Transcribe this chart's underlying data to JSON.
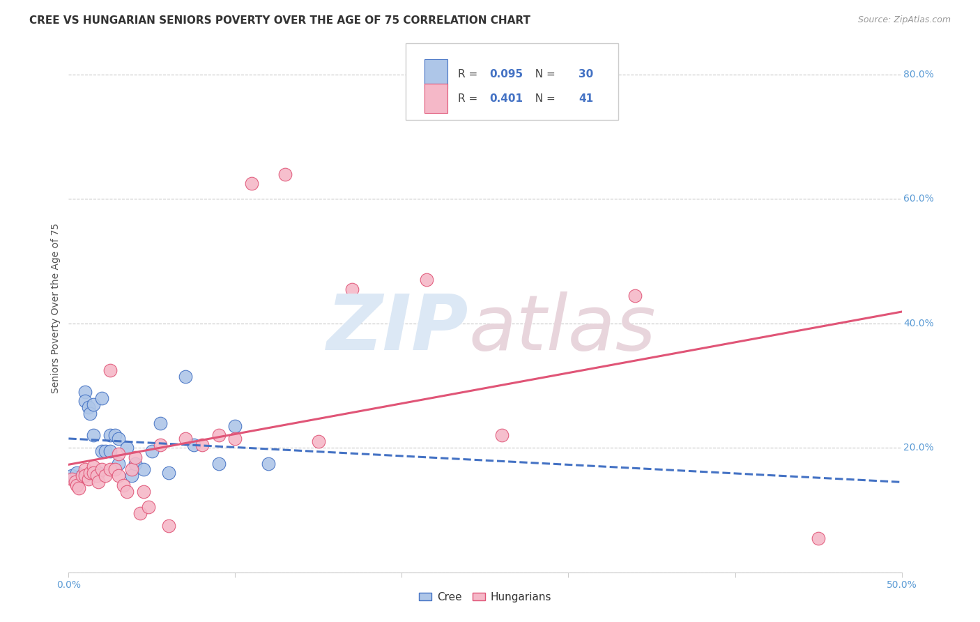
{
  "title": "CREE VS HUNGARIAN SENIORS POVERTY OVER THE AGE OF 75 CORRELATION CHART",
  "source": "Source: ZipAtlas.com",
  "ylabel": "Seniors Poverty Over the Age of 75",
  "xlim": [
    0.0,
    0.5
  ],
  "ylim": [
    0.0,
    0.85
  ],
  "cree_R": 0.095,
  "cree_N": 30,
  "hung_R": 0.401,
  "hung_N": 41,
  "cree_color": "#aec6e8",
  "hung_color": "#f5b8c8",
  "cree_line_color": "#4472c4",
  "hung_line_color": "#e05577",
  "background_color": "#ffffff",
  "grid_color": "#c8c8c8",
  "cree_x": [
    0.002,
    0.005,
    0.008,
    0.01,
    0.01,
    0.012,
    0.013,
    0.015,
    0.015,
    0.018,
    0.02,
    0.02,
    0.022,
    0.025,
    0.025,
    0.028,
    0.03,
    0.03,
    0.035,
    0.038,
    0.04,
    0.045,
    0.05,
    0.055,
    0.06,
    0.07,
    0.075,
    0.09,
    0.1,
    0.12
  ],
  "cree_y": [
    0.155,
    0.16,
    0.155,
    0.29,
    0.275,
    0.265,
    0.255,
    0.27,
    0.22,
    0.16,
    0.28,
    0.195,
    0.195,
    0.22,
    0.195,
    0.22,
    0.215,
    0.175,
    0.2,
    0.155,
    0.175,
    0.165,
    0.195,
    0.24,
    0.16,
    0.315,
    0.205,
    0.175,
    0.235,
    0.175
  ],
  "hung_x": [
    0.002,
    0.004,
    0.005,
    0.006,
    0.008,
    0.01,
    0.01,
    0.012,
    0.013,
    0.015,
    0.015,
    0.017,
    0.018,
    0.02,
    0.022,
    0.025,
    0.025,
    0.028,
    0.03,
    0.03,
    0.033,
    0.035,
    0.038,
    0.04,
    0.043,
    0.045,
    0.048,
    0.055,
    0.06,
    0.07,
    0.08,
    0.09,
    0.1,
    0.11,
    0.13,
    0.15,
    0.17,
    0.215,
    0.26,
    0.34,
    0.45
  ],
  "hung_y": [
    0.15,
    0.145,
    0.14,
    0.135,
    0.155,
    0.165,
    0.155,
    0.15,
    0.16,
    0.17,
    0.16,
    0.155,
    0.145,
    0.165,
    0.155,
    0.325,
    0.165,
    0.165,
    0.19,
    0.155,
    0.14,
    0.13,
    0.165,
    0.185,
    0.095,
    0.13,
    0.105,
    0.205,
    0.075,
    0.215,
    0.205,
    0.22,
    0.215,
    0.625,
    0.64,
    0.21,
    0.455,
    0.47,
    0.22,
    0.445,
    0.055
  ],
  "title_fontsize": 11,
  "axis_label_fontsize": 10,
  "tick_fontsize": 10
}
